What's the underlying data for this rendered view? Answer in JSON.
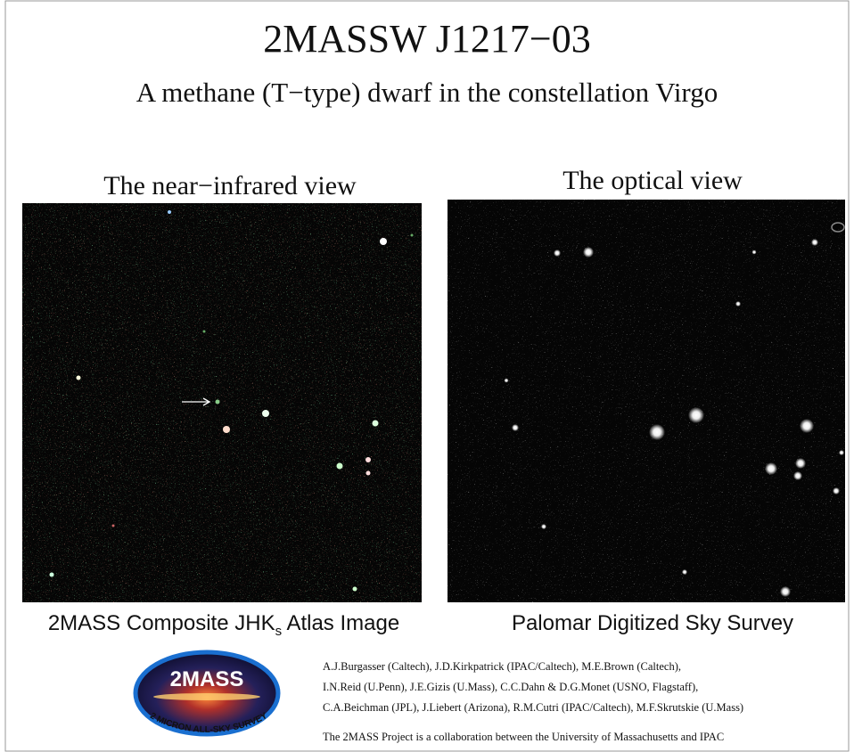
{
  "header": {
    "title": "2MASSW J1217−03",
    "subtitle": "A methane (T−type) dwarf in the constellation Virgo"
  },
  "panels": [
    {
      "heading": "The near−infrared view",
      "caption": [
        "2MASS Composite JHK",
        "s",
        " Atlas Image"
      ]
    },
    {
      "heading": "The optical view",
      "caption": [
        "Palomar Digitized Sky Survey"
      ]
    }
  ],
  "logo": {
    "name": "2MASS",
    "tagline": "2 MICRON ALL-SKY SURVEY"
  },
  "credits": [
    "A.J.Burgasser (Caltech), J.D.Kirkpatrick (IPAC/Caltech), M.E.Brown (Caltech),",
    "I.N.Reid (U.Penn), J.E.Gizis (U.Mass), C.C.Dahn & D.G.Monet (USNO, Flagstaff),",
    "C.A.Beichman (JPL), J.Liebert (Arizona), R.M.Cutri (IPAC/Caltech), M.F.Skrutskie (U.Mass)"
  ],
  "collaboration": "The 2MASS Project is a collaboration between the University of Massachusetts and IPAC"
}
